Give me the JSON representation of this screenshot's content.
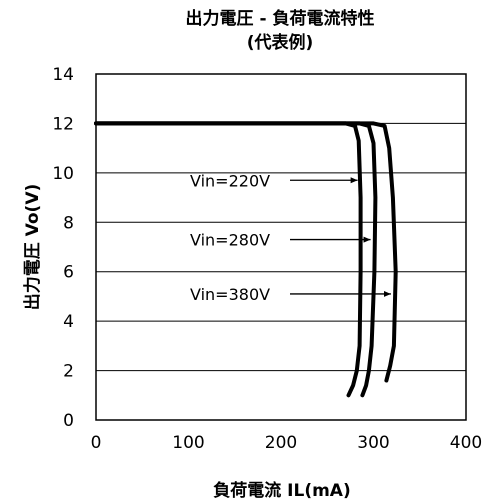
{
  "chart_data": {
    "type": "line",
    "title": "出力電圧 - 負荷電流特性",
    "subtitle": "(代表例)",
    "xlabel": "負荷電流 IL(mA)",
    "ylabel": "出力電圧 Vo(V)",
    "xlim": [
      0,
      400
    ],
    "ylim": [
      0,
      14
    ],
    "xticks": [
      0,
      100,
      200,
      300,
      400
    ],
    "yticks": [
      0,
      2,
      4,
      6,
      8,
      10,
      12,
      14
    ],
    "grid": "horizontal",
    "legend": "none",
    "series": [
      {
        "name": "Vin=220V",
        "points": [
          [
            0,
            12.0
          ],
          [
            150,
            12.0
          ],
          [
            250,
            12.0
          ],
          [
            270,
            12.0
          ],
          [
            280,
            11.9
          ],
          [
            284,
            11.3
          ],
          [
            286,
            9.0
          ],
          [
            286,
            6.0
          ],
          [
            285,
            3.0
          ],
          [
            282,
            2.0
          ],
          [
            278,
            1.4
          ],
          [
            273,
            1.0
          ]
        ]
      },
      {
        "name": "Vin=280V",
        "points": [
          [
            0,
            12.0
          ],
          [
            150,
            12.0
          ],
          [
            250,
            12.0
          ],
          [
            285,
            12.0
          ],
          [
            295,
            11.9
          ],
          [
            300,
            11.2
          ],
          [
            302,
            9.0
          ],
          [
            301,
            6.0
          ],
          [
            298,
            3.0
          ],
          [
            295,
            2.0
          ],
          [
            292,
            1.4
          ],
          [
            288,
            1.0
          ]
        ]
      },
      {
        "name": "Vin=380V",
        "points": [
          [
            0,
            12.0
          ],
          [
            150,
            12.0
          ],
          [
            250,
            12.0
          ],
          [
            300,
            12.0
          ],
          [
            312,
            11.9
          ],
          [
            317,
            11.0
          ],
          [
            321,
            9.0
          ],
          [
            324,
            6.0
          ],
          [
            322,
            3.0
          ],
          [
            318,
            2.2
          ],
          [
            314,
            1.6
          ]
        ]
      }
    ],
    "annotations": [
      {
        "text": "Vin=220V",
        "y": 9.7,
        "arrow_to": [
          285,
          9.7
        ]
      },
      {
        "text": "Vin=280V",
        "y": 7.3,
        "arrow_to": [
          299,
          7.3
        ]
      },
      {
        "text": "Vin=380V",
        "y": 5.1,
        "arrow_to": [
          321,
          5.1
        ]
      }
    ]
  }
}
